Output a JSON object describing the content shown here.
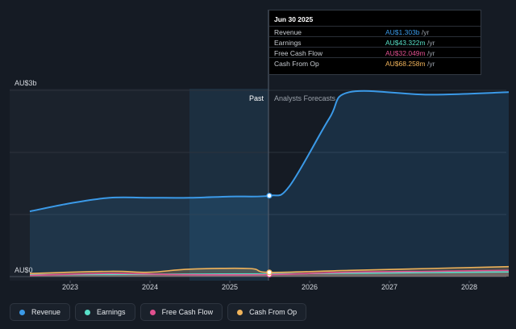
{
  "chart_data": {
    "type": "line",
    "x_ticks": [
      "2023",
      "2024",
      "2025",
      "2026",
      "2027",
      "2028"
    ],
    "y_tick_labels": [
      "AU$3b",
      "AU$0"
    ],
    "ylim": [
      0,
      3.0
    ],
    "y_unit": "AU$ billions",
    "divider_label_past": "Past",
    "divider_label_forecast": "Analysts Forecasts",
    "divider_date": "2025-06-30",
    "series": [
      {
        "name": "Revenue",
        "color": "#3b9ae8",
        "x": [
          "2022-06-30",
          "2022-12-31",
          "2023-06-30",
          "2023-12-31",
          "2024-06-30",
          "2024-12-31",
          "2025-06-30",
          "2025-09-30",
          "2026-03-31",
          "2026-06-30",
          "2027-06-30",
          "2028-06-30"
        ],
        "y": [
          1.05,
          1.18,
          1.27,
          1.27,
          1.27,
          1.29,
          1.303,
          1.45,
          2.55,
          2.97,
          2.93,
          2.97
        ]
      },
      {
        "name": "Earnings",
        "color": "#58e0c8",
        "x": [
          "2022-06-30",
          "2023-06-30",
          "2024-06-30",
          "2025-06-30",
          "2026-06-30",
          "2027-06-30",
          "2028-06-30"
        ],
        "y": [
          0.03,
          0.035,
          0.04,
          0.043,
          0.055,
          0.065,
          0.075
        ]
      },
      {
        "name": "Free Cash Flow",
        "color": "#e0508f",
        "x": [
          "2022-06-30",
          "2023-06-30",
          "2024-06-30",
          "2025-06-30",
          "2026-06-30",
          "2027-06-30",
          "2028-06-30"
        ],
        "y": [
          0.02,
          0.05,
          0.03,
          0.032,
          0.07,
          0.085,
          0.1
        ]
      },
      {
        "name": "Cash From Op",
        "color": "#f0b35a",
        "x": [
          "2022-06-30",
          "2023-06-30",
          "2023-12-31",
          "2024-06-30",
          "2025-03-31",
          "2025-06-30",
          "2026-06-30",
          "2027-06-30",
          "2028-06-30"
        ],
        "y": [
          0.05,
          0.085,
          0.07,
          0.12,
          0.13,
          0.068,
          0.1,
          0.13,
          0.16
        ]
      }
    ]
  },
  "tooltip": {
    "date": "Jun 30 2025",
    "rows": [
      {
        "name": "Revenue",
        "value": "AU$1.303b",
        "unit": "/yr",
        "color": "#3b9ae8"
      },
      {
        "name": "Earnings",
        "value": "AU$43.322m",
        "unit": "/yr",
        "color": "#58e0c8"
      },
      {
        "name": "Free Cash Flow",
        "value": "AU$32.049m",
        "unit": "/yr",
        "color": "#e0508f"
      },
      {
        "name": "Cash From Op",
        "value": "AU$68.258m",
        "unit": "/yr",
        "color": "#f0b35a"
      }
    ]
  },
  "legend": [
    {
      "label": "Revenue",
      "color": "#3b9ae8"
    },
    {
      "label": "Earnings",
      "color": "#58e0c8"
    },
    {
      "label": "Free Cash Flow",
      "color": "#e0508f"
    },
    {
      "label": "Cash From Op",
      "color": "#f0b35a"
    }
  ]
}
